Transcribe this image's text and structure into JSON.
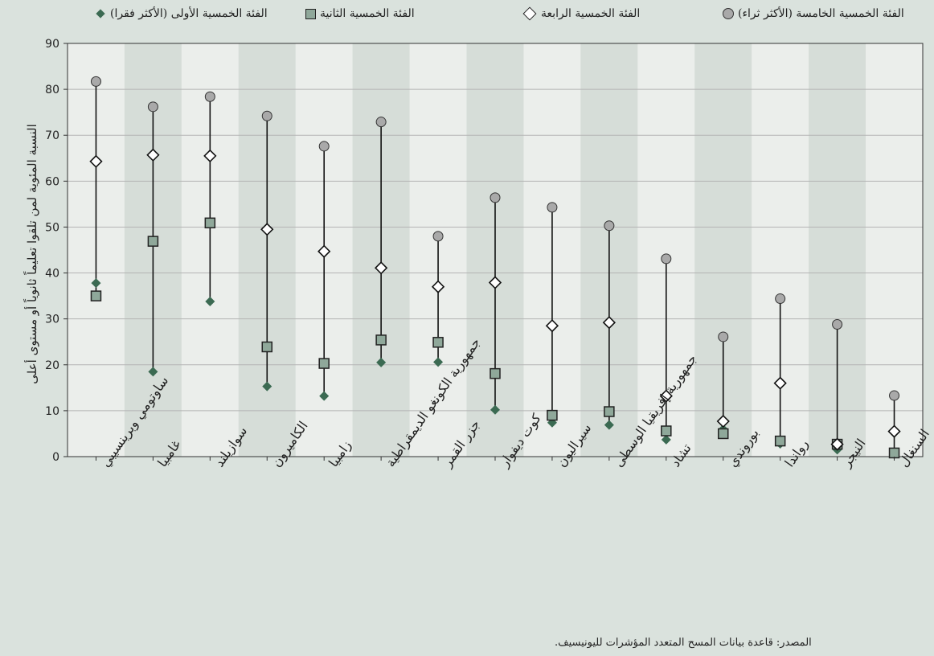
{
  "legend": [
    {
      "label": "الفئة الخمسية الخامسة (الأكثر ثراء)",
      "marker": "circle"
    },
    {
      "label": "الفئة الخمسية الرابعة",
      "marker": "diamond-open"
    },
    {
      "label": "الفئة الخمسية الثانية",
      "marker": "square"
    },
    {
      "label": "الفئة الخمسية الأولى (الأكثر فقرا)",
      "marker": "diamond-filled"
    }
  ],
  "source": "المصدر: قاعدة بيانات المسح المتعدد المؤشرات لليونيسيف.",
  "colors": {
    "background": "#dae2dd",
    "stripe_light": "#ebeeeb",
    "stripe_dark": "#d6ddd8",
    "richest": "#a9a9a9",
    "fourth": "#ffffff",
    "second": "#8fa89a",
    "poorest": "#3b6a52"
  },
  "chart_data": {
    "type": "scatter",
    "ylabel": "النسبة المئوية لمن تلقوا تعليماً ثانوياً أو مستوى أعلى",
    "xlabel": "",
    "ylim": [
      0,
      90
    ],
    "yticks": [
      0,
      10,
      20,
      30,
      40,
      50,
      60,
      70,
      80,
      90
    ],
    "grid": true,
    "legend_position": "top",
    "categories": [
      "ساوتومي وبرينسيبي",
      "غامبيا",
      "سوازيلند",
      "الكاميرون",
      "زامبيا",
      "جمهورية الكونغو الديمقراطية",
      "جزر القمر",
      "كوت ديفوار",
      "سيراليون",
      "جمهورية إفريقيا الوسطى",
      "تشاد",
      "بوروندي",
      "رواندا",
      "النيجر",
      "السنغال"
    ],
    "series": [
      {
        "name": "الفئة الخمسية الخامسة (الأكثر ثراء)",
        "values": [
          81.7,
          76.2,
          78.4,
          74.2,
          67.6,
          72.9,
          48.0,
          56.4,
          54.3,
          50.3,
          43.1,
          26.1,
          34.4,
          28.8,
          13.3
        ]
      },
      {
        "name": "الفئة الخمسية الرابعة",
        "values": [
          64.3,
          65.7,
          65.5,
          49.5,
          44.7,
          41.1,
          37.0,
          37.9,
          28.5,
          29.2,
          13.2,
          7.7,
          16.0,
          2.7,
          5.5
        ]
      },
      {
        "name": "الفئة الخمسية الثانية",
        "values": [
          35.0,
          46.9,
          50.9,
          23.9,
          20.3,
          25.4,
          24.9,
          18.1,
          9.0,
          9.8,
          5.6,
          5.0,
          3.4,
          2.7,
          0.8
        ]
      },
      {
        "name": "الفئة الخمسية الأولى (الأكثر فقرا)",
        "values": [
          37.8,
          18.5,
          33.8,
          15.3,
          13.2,
          20.5,
          20.6,
          10.2,
          7.4,
          6.9,
          3.7,
          6.0,
          2.8,
          1.5,
          0.5
        ]
      }
    ]
  }
}
